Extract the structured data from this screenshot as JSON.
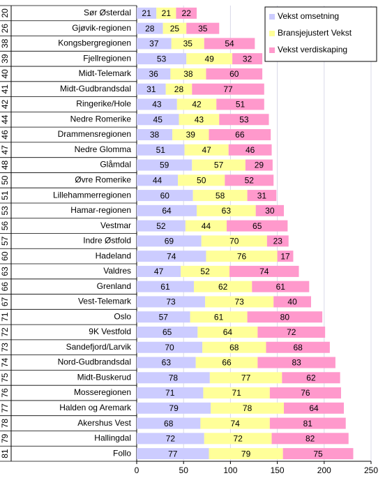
{
  "chart_data": {
    "type": "stacked-bar-horizontal",
    "ranks": [
      20,
      26,
      38,
      39,
      40,
      41,
      42,
      44,
      46,
      47,
      48,
      50,
      51,
      53,
      56,
      57,
      60,
      63,
      66,
      67,
      71,
      72,
      73,
      74,
      75,
      76,
      77,
      78,
      79,
      81
    ],
    "categories": [
      "Sør Østerdal",
      "Gjøvik-regionen",
      "Kongsbergregionen",
      "Fjellregionen",
      "Midt-Telemark",
      "Midt-Gudbrandsdal",
      "Ringerike/Hole",
      "Nedre Romerike",
      "Drammensregionen",
      "Nedre Glomma",
      "Glåmdal",
      "Øvre Romerike",
      "Lillehammerregionen",
      "Hamar-regionen",
      "Vestmar",
      "Indre Østfold",
      "Hadeland",
      "Valdres",
      "Grenland",
      "Vest-Telemark",
      "Oslo",
      "9K Vestfold",
      "Sandefjord/Larvik",
      "Nord-Gudbrandsdal",
      "Midt-Buskerud",
      "Mosseregionen",
      "Halden og Aremark",
      "Akershus Vest",
      "Hallingdal",
      "Follo"
    ],
    "series": [
      {
        "name": "Vekst omsetning",
        "color": "#ccccff",
        "values": [
          21,
          28,
          37,
          53,
          36,
          31,
          43,
          45,
          38,
          51,
          59,
          44,
          60,
          64,
          52,
          69,
          74,
          47,
          61,
          73,
          57,
          65,
          70,
          63,
          78,
          71,
          79,
          68,
          72,
          77
        ]
      },
      {
        "name": "Bransjejustert Vekst",
        "color": "#ffff99",
        "values": [
          21,
          25,
          35,
          49,
          38,
          28,
          42,
          43,
          39,
          47,
          57,
          50,
          58,
          63,
          44,
          70,
          76,
          52,
          62,
          73,
          61,
          64,
          68,
          66,
          77,
          71,
          78,
          74,
          72,
          79
        ]
      },
      {
        "name": "Vekst verdiskaping",
        "color": "#ff99cc",
        "values": [
          22,
          35,
          54,
          32,
          60,
          77,
          51,
          53,
          66,
          46,
          29,
          52,
          31,
          30,
          65,
          23,
          17,
          74,
          61,
          40,
          80,
          72,
          68,
          83,
          62,
          76,
          64,
          81,
          82,
          75
        ]
      }
    ],
    "xlim": [
      0,
      250
    ],
    "xticks": [
      0,
      50,
      100,
      150,
      200,
      250
    ],
    "grid": true,
    "legend": "top-right"
  }
}
